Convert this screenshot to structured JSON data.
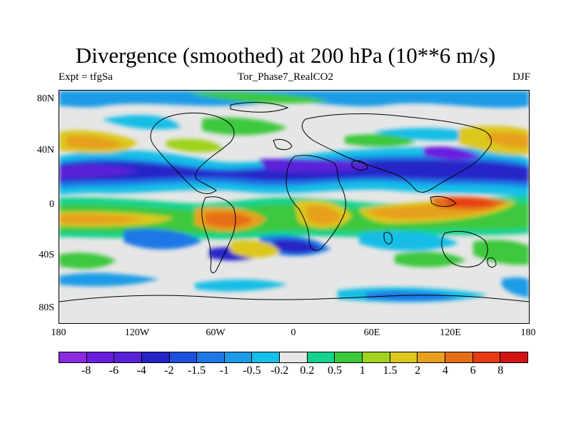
{
  "title": "Divergence (smoothed) at 200 hPa (10**6 m/s)",
  "subtitle_left": "Expt = tfgSa",
  "subtitle_center": "Tor_Phase7_RealCO2",
  "subtitle_right": "DJF",
  "lat_labels": [
    "80N",
    "40N",
    "0",
    "40S",
    "80S"
  ],
  "lon_labels": [
    "180",
    "120W",
    "60W",
    "0",
    "60E",
    "120E",
    "180"
  ],
  "colorbar": {
    "labels": [
      "-8",
      "-6",
      "-4",
      "-2",
      "-1.5",
      "-1",
      "-0.5",
      "-0.2",
      "0.2",
      "0.5",
      "1",
      "1.5",
      "2",
      "4",
      "6",
      "8"
    ],
    "colors": [
      "#8a2be2",
      "#6a1fe0",
      "#5a22d8",
      "#2525c8",
      "#1e50dc",
      "#1e78e6",
      "#1e9be6",
      "#14bee6",
      "#e6e6e6",
      "#14d28c",
      "#3cc83c",
      "#a0d21e",
      "#dcc81e",
      "#e6a01e",
      "#e66e14",
      "#e63c14",
      "#d21414"
    ]
  }
}
